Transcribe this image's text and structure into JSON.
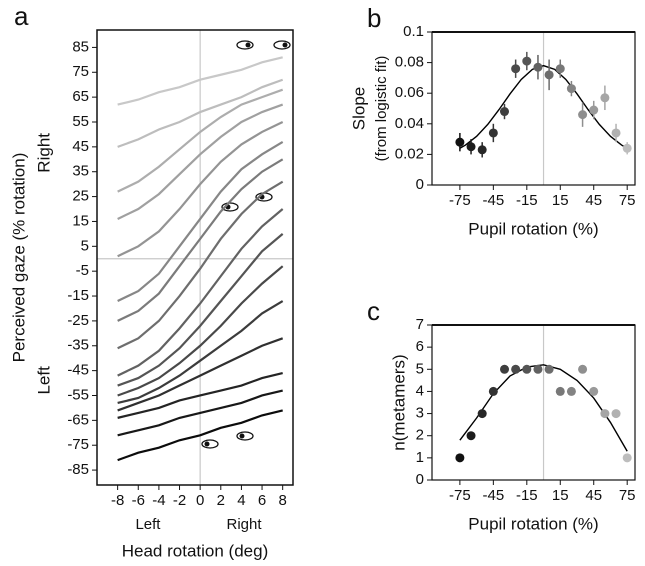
{
  "chart_data": [
    {
      "type": "line",
      "panel_label": "a",
      "ylabel": "Perceived gaze (% rotation)",
      "xlabel": "Head rotation (deg)",
      "y_annotations": [
        "Right",
        "Left"
      ],
      "x_annotations": [
        "Left",
        "Right"
      ],
      "x": [
        -8,
        -6,
        -4,
        -2,
        0,
        2,
        4,
        6,
        8
      ],
      "xlim": [
        -10,
        9
      ],
      "ylim": [
        -91,
        92
      ],
      "xticks": [
        -8,
        -6,
        -4,
        -2,
        0,
        2,
        4,
        6,
        8
      ],
      "yticks": [
        85,
        75,
        65,
        55,
        45,
        35,
        25,
        15,
        5,
        -5,
        -15,
        -25,
        -35,
        -45,
        -55,
        -65,
        -75,
        -85
      ],
      "ref_lines": {
        "x": [
          0
        ],
        "y": [
          0
        ]
      },
      "series": [
        {
          "color": "#c8c8c8",
          "values": [
            62,
            64,
            67,
            69,
            72,
            74,
            76,
            79,
            81
          ]
        },
        {
          "color": "#bdbdbd",
          "values": [
            45,
            48,
            52,
            55,
            59,
            62,
            65,
            69,
            72
          ]
        },
        {
          "color": "#adadad",
          "values": [
            27,
            31,
            37,
            44,
            51,
            57,
            62,
            65,
            68
          ]
        },
        {
          "color": "#a0a0a0",
          "values": [
            16,
            20,
            26,
            34,
            42,
            49,
            55,
            59,
            62
          ]
        },
        {
          "color": "#949494",
          "values": [
            1,
            5,
            11,
            20,
            30,
            39,
            46,
            51,
            55
          ]
        },
        {
          "color": "#878787",
          "values": [
            -17,
            -13,
            -6,
            5,
            16,
            27,
            36,
            42,
            47
          ]
        },
        {
          "color": "#7b7b7b",
          "values": [
            -25,
            -21,
            -14,
            -3,
            8,
            19,
            28,
            35,
            40
          ]
        },
        {
          "color": "#6e6e6e",
          "values": [
            -36,
            -32,
            -25,
            -15,
            -4,
            8,
            18,
            26,
            31
          ]
        },
        {
          "color": "#626262",
          "values": [
            -47,
            -43,
            -37,
            -28,
            -18,
            -7,
            4,
            13,
            20
          ]
        },
        {
          "color": "#555555",
          "values": [
            -51,
            -48,
            -43,
            -36,
            -27,
            -17,
            -7,
            3,
            10
          ]
        },
        {
          "color": "#494949",
          "values": [
            -55,
            -52,
            -48,
            -42,
            -35,
            -27,
            -18,
            -10,
            -3
          ]
        },
        {
          "color": "#3c3c3c",
          "values": [
            -58,
            -56,
            -52,
            -47,
            -41,
            -35,
            -29,
            -22,
            -17
          ]
        },
        {
          "color": "#303030",
          "values": [
            -61,
            -58,
            -55,
            -51,
            -47,
            -43,
            -39,
            -35,
            -32
          ]
        },
        {
          "color": "#242424",
          "values": [
            -64,
            -62,
            -60,
            -57,
            -55,
            -53,
            -51,
            -48,
            -46
          ]
        },
        {
          "color": "#181818",
          "values": [
            -71,
            -69,
            -67,
            -64,
            -62,
            -60,
            -58,
            -55,
            -53
          ]
        },
        {
          "color": "#0c0c0c",
          "values": [
            -81,
            -78,
            -76,
            -73,
            -71,
            -68,
            -66,
            -63,
            -61
          ]
        }
      ]
    },
    {
      "type": "scatter",
      "panel_label": "b",
      "ylabel": "Slope",
      "ylabel2": "(from logistic fit)",
      "xlabel": "Pupil rotation (%)",
      "xlim": [
        -100,
        82
      ],
      "ylim": [
        0,
        0.1
      ],
      "xticks": [
        -75,
        -45,
        -15,
        15,
        45,
        75
      ],
      "yticks": [
        0,
        0.02,
        0.04,
        0.06,
        0.08,
        0.1
      ],
      "ref_lines": {
        "x": [
          0
        ]
      },
      "points": {
        "x": [
          -75,
          -65,
          -55,
          -45,
          -35,
          -25,
          -15,
          -5,
          5,
          15,
          25,
          35,
          45,
          55,
          65,
          75
        ],
        "values": [
          0.028,
          0.025,
          0.023,
          0.034,
          0.048,
          0.076,
          0.081,
          0.077,
          0.072,
          0.076,
          0.063,
          0.046,
          0.049,
          0.057,
          0.034,
          0.024
        ],
        "errors": [
          0.006,
          0.005,
          0.005,
          0.006,
          0.005,
          0.006,
          0.006,
          0.008,
          0.01,
          0.006,
          0.005,
          0.008,
          0.006,
          0.008,
          0.006,
          0.004
        ],
        "colors": [
          "#111111",
          "#1c1c1c",
          "#272727",
          "#333333",
          "#3e3e3e",
          "#4a4a4a",
          "#555555",
          "#616161",
          "#6c6c6c",
          "#787878",
          "#838383",
          "#8f8f8f",
          "#9a9a9a",
          "#a6a6a6",
          "#b1b1b1",
          "#bdbdbd"
        ]
      },
      "fit": {
        "color": "#000000",
        "x": [
          -75,
          -70,
          -60,
          -50,
          -40,
          -30,
          -20,
          -10,
          0,
          10,
          20,
          30,
          40,
          50,
          60,
          70,
          75
        ],
        "values": [
          0.024,
          0.0261,
          0.0318,
          0.0396,
          0.0492,
          0.0596,
          0.069,
          0.0756,
          0.078,
          0.0756,
          0.069,
          0.0596,
          0.0492,
          0.0396,
          0.0318,
          0.0261,
          0.024
        ]
      }
    },
    {
      "type": "scatter",
      "panel_label": "c",
      "ylabel": "n(metamers)",
      "xlabel": "Pupil rotation (%)",
      "xlim": [
        -100,
        82
      ],
      "ylim": [
        0,
        7
      ],
      "xticks": [
        -75,
        -45,
        -15,
        15,
        45,
        75
      ],
      "yticks": [
        0,
        1,
        2,
        3,
        4,
        5,
        6,
        7
      ],
      "ref_lines": {
        "x": [
          0
        ]
      },
      "points": {
        "x": [
          -75,
          -65,
          -55,
          -45,
          -35,
          -25,
          -15,
          -5,
          5,
          15,
          25,
          35,
          45,
          55,
          65,
          75
        ],
        "values": [
          1,
          2,
          3,
          4,
          5,
          5,
          5,
          5,
          5,
          4,
          4,
          5,
          4,
          3,
          3,
          1
        ],
        "colors": [
          "#111111",
          "#1c1c1c",
          "#272727",
          "#333333",
          "#3e3e3e",
          "#4a4a4a",
          "#555555",
          "#616161",
          "#6c6c6c",
          "#787878",
          "#838383",
          "#8f8f8f",
          "#9a9a9a",
          "#a6a6a6",
          "#b1b1b1",
          "#bdbdbd"
        ]
      },
      "fit": {
        "color": "#000000",
        "x": [
          -75,
          -60,
          -45,
          -30,
          -15,
          0,
          15,
          30,
          45,
          60,
          75
        ],
        "values": [
          1.8,
          2.8,
          3.9,
          4.7,
          5.1,
          5.2,
          5.0,
          4.5,
          3.7,
          2.6,
          1.3
        ]
      }
    }
  ]
}
